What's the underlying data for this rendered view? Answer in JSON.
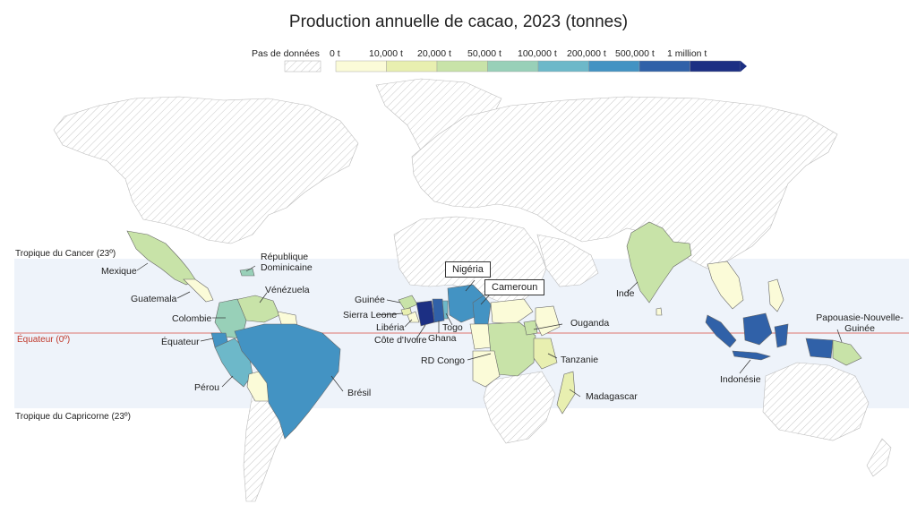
{
  "title": "Production annuelle de cacao, 2023 (tonnes)",
  "legend": {
    "no_data": "Pas de données",
    "ticks": [
      "0 t",
      "10,000 t",
      "20,000 t",
      "50,000 t",
      "100,000 t",
      "200,000 t",
      "500,000 t",
      "1 million t"
    ],
    "colors": [
      "#fbfbd8",
      "#e8efb0",
      "#c8e3a8",
      "#98d0b8",
      "#6db8c9",
      "#4393c3",
      "#3061a8",
      "#1c2f83"
    ]
  },
  "lines": {
    "cancer": "Tropique du Cancer  (23º)",
    "equator": "Équateur (0º)",
    "capricorn": "Tropique du Capricorne (23º)"
  },
  "countries": {
    "mexique": "Mexique",
    "guatemala": "Guatemala",
    "rep_dom": "République Dominicaine",
    "venezuela": "Vénézuela",
    "colombie": "Colombie",
    "equateur": "Équateur",
    "perou": "Pérou",
    "bresil": "Brésil",
    "guinee": "Guinée",
    "sierra_leone": "Sierra Leone",
    "liberia": "Libéria",
    "cote_ivoire": "Côte d'Ivoire",
    "ghana": "Ghana",
    "togo": "Togo",
    "nigeria": "Nigéria",
    "cameroun": "Cameroun",
    "ouganda": "Ouganda",
    "rd_congo": "RD Congo",
    "tanzanie": "Tanzanie",
    "madagascar": "Madagascar",
    "inde": "Inde",
    "indonesie": "Indonésie",
    "png": "Papouasie-Nouvelle-Guinée"
  }
}
